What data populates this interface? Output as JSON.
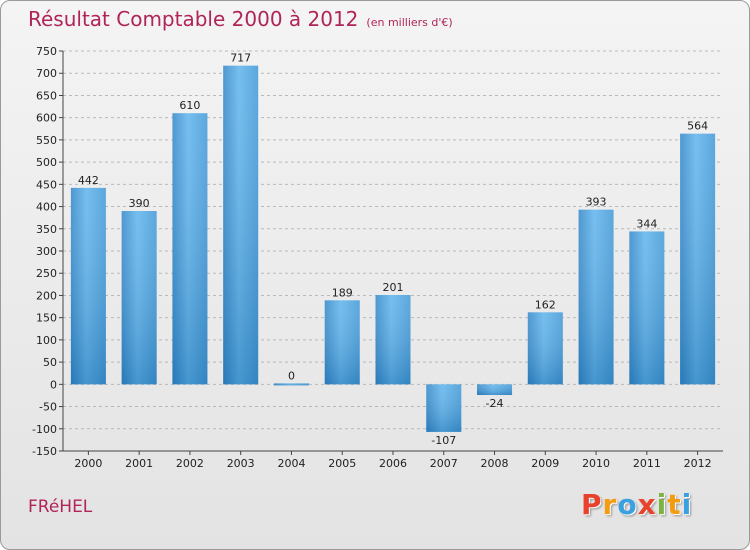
{
  "chart_data": {
    "type": "bar",
    "title": "Résultat Comptable 2000 à 2012",
    "subtitle": "(en milliers d'€)",
    "categories": [
      "2000",
      "2001",
      "2002",
      "2003",
      "2004",
      "2005",
      "2006",
      "2007",
      "2008",
      "2009",
      "2010",
      "2011",
      "2012"
    ],
    "values": [
      442,
      390,
      610,
      717,
      0,
      189,
      201,
      -107,
      -24,
      162,
      393,
      344,
      564
    ],
    "value_labels": [
      "442",
      "390",
      "610",
      "717",
      "0",
      "189",
      "201",
      "-107",
      "-24",
      "162",
      "393",
      "344",
      "564"
    ],
    "ylim": [
      -150,
      750
    ],
    "yticks": [
      -150,
      -100,
      -50,
      0,
      50,
      100,
      150,
      200,
      250,
      300,
      350,
      400,
      450,
      500,
      550,
      600,
      650,
      700,
      750
    ],
    "ytick_labels": [
      "-150",
      "-100",
      "-50",
      "0",
      "50",
      "100",
      "150",
      "200",
      "250",
      "300",
      "350",
      "400",
      "450",
      "500",
      "550",
      "600",
      "650",
      "700",
      "750"
    ],
    "grid": "horizontal dashed",
    "xlabel": "",
    "ylabel": ""
  },
  "footer": {
    "commune": "FRéHEL",
    "brand_letters": [
      "P",
      "r",
      "o",
      "x",
      "i",
      "t",
      "i"
    ],
    "brand_colors": [
      "#e8412c",
      "#f39c12",
      "#3aa0e0",
      "#e8412c",
      "#7cb342",
      "#f39c12",
      "#3aa0e0"
    ]
  },
  "colors": {
    "title": "#b0245a",
    "bar_light": "#5aaee8",
    "bar_dark": "#2a7ec0",
    "grid": "#b9b9b9"
  }
}
